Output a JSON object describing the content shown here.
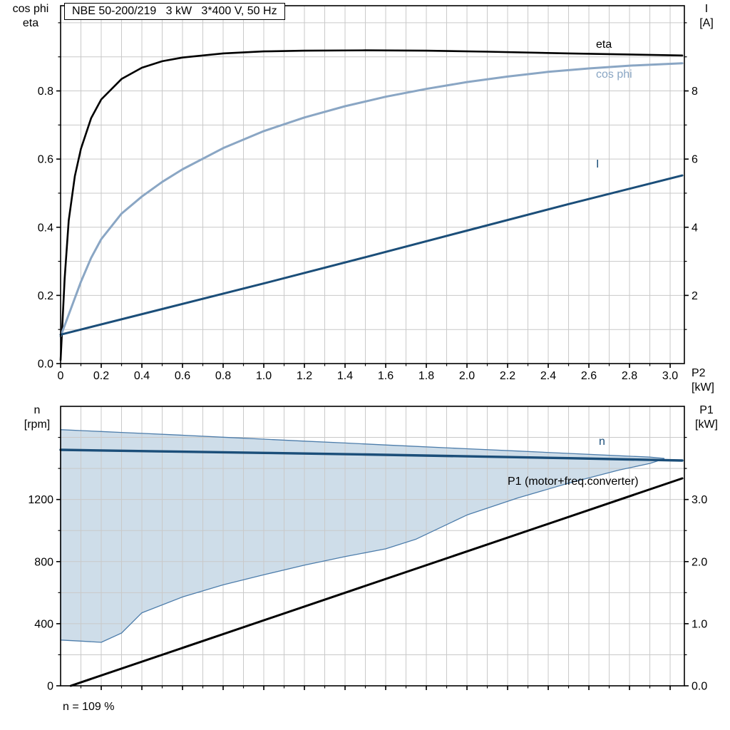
{
  "footer": {
    "note": "n = 109 %"
  },
  "chart_data": [
    {
      "name": "motor-performance",
      "type": "line",
      "title": "NBE 50-200/219   3 kW   3*400 V, 50 Hz",
      "xlabel": "P2 [kW]",
      "xlim": [
        0,
        3.07
      ],
      "grid": {
        "x_step": 0.1,
        "y_step": 0.1,
        "color": "#c9c9c9"
      },
      "x_ticks": [
        {
          "v": 0,
          "label": "0"
        },
        {
          "v": 0.2,
          "label": "0.2"
        },
        {
          "v": 0.4,
          "label": "0.4"
        },
        {
          "v": 0.6,
          "label": "0.6"
        },
        {
          "v": 0.8,
          "label": "0.8"
        },
        {
          "v": 1.0,
          "label": "1.0"
        },
        {
          "v": 1.2,
          "label": "1.2"
        },
        {
          "v": 1.4,
          "label": "1.4"
        },
        {
          "v": 1.6,
          "label": "1.6"
        },
        {
          "v": 1.8,
          "label": "1.8"
        },
        {
          "v": 2.0,
          "label": "2.0"
        },
        {
          "v": 2.2,
          "label": "2.2"
        },
        {
          "v": 2.4,
          "label": "2.4"
        },
        {
          "v": 2.6,
          "label": "2.6"
        },
        {
          "v": 2.8,
          "label": "2.8"
        },
        {
          "v": 3.0,
          "label": "3.0"
        }
      ],
      "left_axis": {
        "title": "cos phi\neta",
        "lim": [
          0,
          1.05
        ],
        "ticks": [
          {
            "v": 0,
            "label": "0.0"
          },
          {
            "v": 0.2,
            "label": "0.2"
          },
          {
            "v": 0.4,
            "label": "0.4"
          },
          {
            "v": 0.6,
            "label": "0.6"
          },
          {
            "v": 0.8,
            "label": "0.8"
          }
        ]
      },
      "right_axis": {
        "title": "I\n[A]",
        "lim": [
          0,
          10.5
        ],
        "ticks": [
          {
            "v": 2,
            "label": "2"
          },
          {
            "v": 4,
            "label": "4"
          },
          {
            "v": 6,
            "label": "6"
          },
          {
            "v": 8,
            "label": "8"
          }
        ]
      },
      "series": [
        {
          "name": "eta",
          "label": "eta",
          "axis": "left",
          "color": "#000000",
          "width": 2.6,
          "x": [
            0,
            0.02,
            0.04,
            0.07,
            0.1,
            0.15,
            0.2,
            0.3,
            0.4,
            0.5,
            0.6,
            0.8,
            1.0,
            1.2,
            1.5,
            1.8,
            2.1,
            2.5,
            3.06
          ],
          "y": [
            0.01,
            0.25,
            0.42,
            0.55,
            0.63,
            0.72,
            0.775,
            0.835,
            0.868,
            0.887,
            0.898,
            0.91,
            0.916,
            0.918,
            0.919,
            0.918,
            0.915,
            0.91,
            0.904
          ]
        },
        {
          "name": "cos phi",
          "label": "cos phi",
          "axis": "left",
          "color": "#8aa6c4",
          "width": 3,
          "x": [
            0,
            0.05,
            0.1,
            0.15,
            0.2,
            0.3,
            0.4,
            0.5,
            0.6,
            0.8,
            1.0,
            1.2,
            1.4,
            1.6,
            1.8,
            2.0,
            2.2,
            2.4,
            2.6,
            2.8,
            3.06
          ],
          "y": [
            0.08,
            0.16,
            0.24,
            0.31,
            0.365,
            0.44,
            0.49,
            0.533,
            0.57,
            0.632,
            0.682,
            0.722,
            0.755,
            0.783,
            0.806,
            0.826,
            0.842,
            0.856,
            0.866,
            0.874,
            0.881
          ]
        },
        {
          "name": "I",
          "label": "I",
          "axis": "right",
          "color": "#1b4e79",
          "width": 3,
          "x": [
            0,
            0.5,
            1.0,
            1.5,
            2.0,
            2.5,
            3.06
          ],
          "y": [
            0.85,
            1.6,
            2.35,
            3.12,
            3.9,
            4.68,
            5.52
          ]
        }
      ]
    },
    {
      "name": "speed-and-input-power",
      "type": "line",
      "xlabel": "",
      "xlim": [
        0,
        3.07
      ],
      "grid": {
        "x_step": 0.1,
        "y_step": 200,
        "color": "#c9c9c9"
      },
      "x_ticks": [
        {
          "v": 0.2
        },
        {
          "v": 0.4
        },
        {
          "v": 0.6
        },
        {
          "v": 0.8
        },
        {
          "v": 1.0
        },
        {
          "v": 1.2
        },
        {
          "v": 1.4
        },
        {
          "v": 1.6
        },
        {
          "v": 1.8
        },
        {
          "v": 2.0
        },
        {
          "v": 2.2
        },
        {
          "v": 2.4
        },
        {
          "v": 2.6
        },
        {
          "v": 2.8
        },
        {
          "v": 3.0
        }
      ],
      "left_axis": {
        "title": "n\n[rpm]",
        "lim": [
          0,
          1800
        ],
        "ticks": [
          {
            "v": 0,
            "label": "0"
          },
          {
            "v": 400,
            "label": "400"
          },
          {
            "v": 800,
            "label": "800"
          },
          {
            "v": 1200,
            "label": "1200"
          }
        ]
      },
      "right_axis": {
        "title": "P1\n[kW]",
        "lim": [
          0,
          4.5
        ],
        "ticks": [
          {
            "v": 0,
            "label": "0.0"
          },
          {
            "v": 1,
            "label": "1.0"
          },
          {
            "v": 2,
            "label": "2.0"
          },
          {
            "v": 3,
            "label": "3.0"
          }
        ]
      },
      "band": {
        "name": "speed-operating-range",
        "fill": "#cedde9",
        "stroke": "#4d7dab",
        "x": [
          0.0,
          0.1,
          0.2,
          0.3,
          0.4,
          0.6,
          0.8,
          1.0,
          1.2,
          1.4,
          1.6,
          1.75,
          2.0,
          2.25,
          2.5,
          2.75,
          2.9,
          2.97
        ],
        "lower": [
          295,
          288,
          280,
          340,
          470,
          572,
          650,
          715,
          777,
          832,
          882,
          945,
          1100,
          1210,
          1305,
          1390,
          1432,
          1462
        ],
        "upper": [
          1650,
          1644,
          1638,
          1632,
          1626,
          1614,
          1601,
          1589,
          1576,
          1564,
          1551,
          1542,
          1527,
          1512,
          1497,
          1482,
          1473,
          1465
        ]
      },
      "series": [
        {
          "name": "n",
          "label": "n",
          "axis": "left",
          "color": "#1b4e79",
          "width": 3.4,
          "x": [
            0,
            0.5,
            1.0,
            1.5,
            2.0,
            2.5,
            3.06
          ],
          "y": [
            1520,
            1510,
            1500,
            1490,
            1478,
            1466,
            1451
          ]
        },
        {
          "name": "P1",
          "label": "P1 (motor+freq.converter)",
          "axis": "right",
          "color": "#000000",
          "width": 3,
          "x": [
            0.05,
            3.06
          ],
          "y": [
            0.0,
            3.34
          ]
        }
      ],
      "annotations": [
        "n = 109 %"
      ]
    }
  ]
}
